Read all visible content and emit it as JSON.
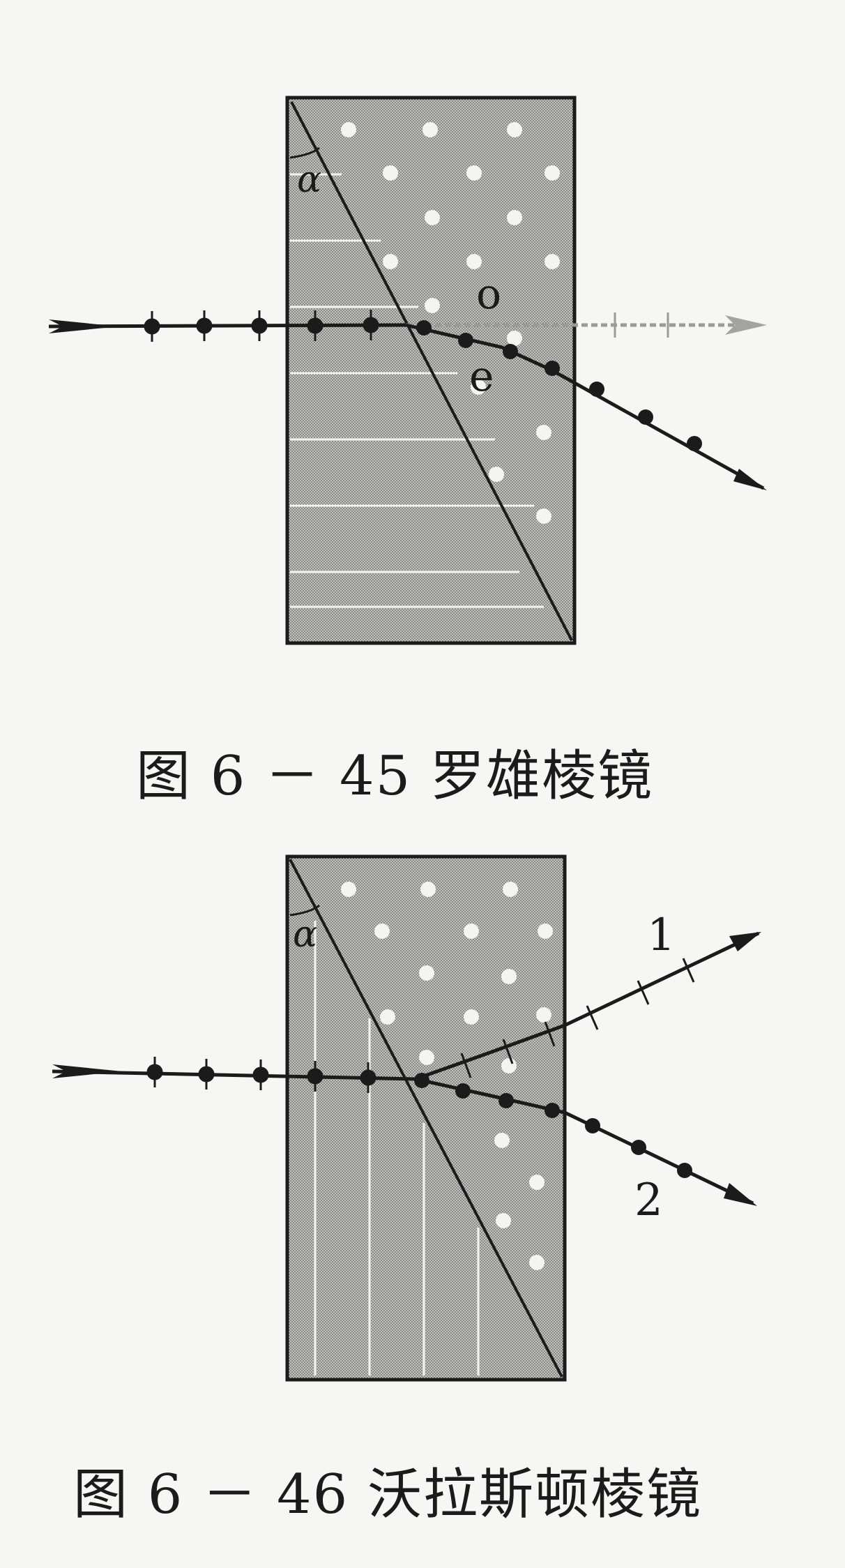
{
  "figure1": {
    "caption": "图 6 － 45  罗雄棱镜",
    "angle_label": "α",
    "ray_o_label": "o",
    "ray_e_label": "e"
  },
  "figure2": {
    "caption": "图 6 － 46 沃拉斯顿棱镜",
    "angle_label": "α",
    "ray1_label": "1",
    "ray2_label": "2"
  },
  "colors": {
    "ink": "#1b1b1b",
    "prism_fill": "#b9b9b6",
    "background": "#f6f6f4"
  }
}
